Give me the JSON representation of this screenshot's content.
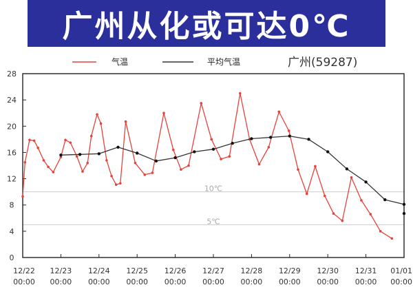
{
  "banner": {
    "title": "广州从化或可达0℃"
  },
  "chart_data": {
    "type": "line",
    "station": "广州(59287)",
    "xlabel": "",
    "ylabel": "",
    "x_range": [
      0,
      10
    ],
    "ylim": [
      0,
      28
    ],
    "y_ticks": [
      0,
      4,
      8,
      12,
      16,
      20,
      24,
      28
    ],
    "x_ticks": [
      {
        "date": "12/22",
        "time": "00:00"
      },
      {
        "date": "12/23",
        "time": "00:00"
      },
      {
        "date": "12/24",
        "time": "00:00"
      },
      {
        "date": "12/25",
        "time": "00:00"
      },
      {
        "date": "12/26",
        "time": "00:00"
      },
      {
        "date": "12/27",
        "time": "00:00"
      },
      {
        "date": "12/28",
        "time": "00:00"
      },
      {
        "date": "12/29",
        "time": "00:00"
      },
      {
        "date": "12/30",
        "time": "00:00"
      },
      {
        "date": "12/31",
        "time": "00:00"
      },
      {
        "date": "01/01",
        "time": "00:00"
      }
    ],
    "reference_lines": [
      {
        "value": 10,
        "label": "10℃"
      },
      {
        "value": 5,
        "label": "5℃"
      }
    ],
    "legend_position": "top",
    "series": [
      {
        "name": "气温",
        "color": "#e8413a",
        "points": [
          [
            0.0,
            9.3
          ],
          [
            0.06,
            14.5
          ],
          [
            0.18,
            17.9
          ],
          [
            0.3,
            17.8
          ],
          [
            0.4,
            16.7
          ],
          [
            0.55,
            14.8
          ],
          [
            0.67,
            13.8
          ],
          [
            0.8,
            13.0
          ],
          [
            1.0,
            15.3
          ],
          [
            1.12,
            17.9
          ],
          [
            1.25,
            17.5
          ],
          [
            1.42,
            15.4
          ],
          [
            1.57,
            13.1
          ],
          [
            1.7,
            14.4
          ],
          [
            1.8,
            18.5
          ],
          [
            1.95,
            21.8
          ],
          [
            2.05,
            20.4
          ],
          [
            2.2,
            14.8
          ],
          [
            2.33,
            12.4
          ],
          [
            2.45,
            11.1
          ],
          [
            2.56,
            11.3
          ],
          [
            2.7,
            20.7
          ],
          [
            2.95,
            14.4
          ],
          [
            3.2,
            12.6
          ],
          [
            3.4,
            12.9
          ],
          [
            3.7,
            22.0
          ],
          [
            3.95,
            16.4
          ],
          [
            4.15,
            13.4
          ],
          [
            4.35,
            14.0
          ],
          [
            4.68,
            23.5
          ],
          [
            4.95,
            18.0
          ],
          [
            5.2,
            15.0
          ],
          [
            5.42,
            15.4
          ],
          [
            5.7,
            25.0
          ],
          [
            5.95,
            18.0
          ],
          [
            6.2,
            14.2
          ],
          [
            6.45,
            16.8
          ],
          [
            6.72,
            22.2
          ],
          [
            6.98,
            19.3
          ],
          [
            7.22,
            13.4
          ],
          [
            7.45,
            9.7
          ],
          [
            7.67,
            13.9
          ],
          [
            7.92,
            9.4
          ],
          [
            8.15,
            6.7
          ],
          [
            8.38,
            5.6
          ],
          [
            8.62,
            12.2
          ],
          [
            8.88,
            8.7
          ],
          [
            9.12,
            6.6
          ],
          [
            9.38,
            4.0
          ],
          [
            9.68,
            2.9
          ]
        ]
      },
      {
        "name": "平均气温",
        "color": "#333333",
        "points": [
          [
            1.0,
            15.6
          ],
          [
            1.5,
            15.7
          ],
          [
            2.0,
            15.8
          ],
          [
            2.5,
            16.8
          ],
          [
            3.0,
            15.9
          ],
          [
            3.5,
            14.7
          ],
          [
            4.0,
            15.2
          ],
          [
            4.5,
            16.1
          ],
          [
            5.0,
            16.5
          ],
          [
            5.5,
            17.4
          ],
          [
            6.0,
            18.1
          ],
          [
            6.5,
            18.3
          ],
          [
            7.0,
            18.5
          ],
          [
            7.5,
            18.0
          ],
          [
            8.0,
            16.1
          ],
          [
            8.5,
            13.5
          ],
          [
            9.0,
            11.5
          ],
          [
            9.5,
            8.8
          ],
          [
            10.0,
            8.1
          ],
          [
            10.0,
            6.7
          ]
        ]
      }
    ]
  }
}
